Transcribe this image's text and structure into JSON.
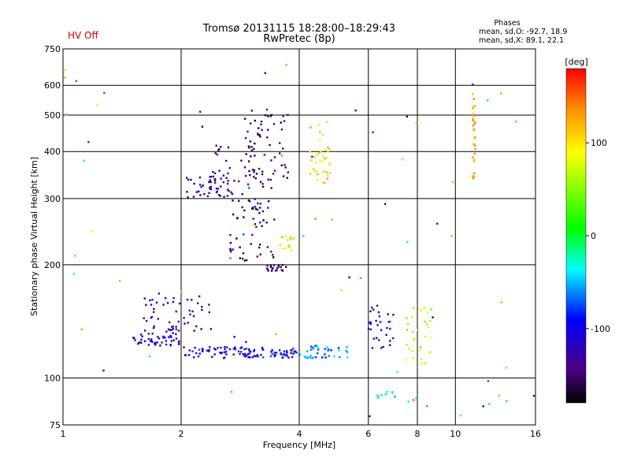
{
  "hv_status": "HV Off",
  "title_line1": "Tromsø 20131115 18:28:00–18:29:43",
  "title_line2": "RwPretec (8p)",
  "phases_legend": {
    "heading": "Phases",
    "line_o": "mean, sd,O: -92.7, 18.9",
    "line_x": "mean, sd,X: 89.1, 22.1"
  },
  "colorbar": {
    "unit_label": "[deg]",
    "ticks": [
      "100",
      "0",
      "-100"
    ],
    "tick_values": [
      100,
      0,
      -100
    ],
    "range": [
      -180,
      180
    ],
    "colors": [
      "#000000",
      "#4b0082",
      "#0000ff",
      "#00ffff",
      "#00ff00",
      "#ffff00",
      "#ff8c00",
      "#ff0000"
    ]
  },
  "chart_data": {
    "type": "scatter",
    "xlabel": "Frequency [MHz]",
    "ylabel": "Stationary phase Virtual Height [km]",
    "xscale": "log",
    "yscale": "log",
    "xlim": [
      1,
      16
    ],
    "ylim": [
      75,
      750
    ],
    "xticks": [
      1,
      2,
      4,
      6,
      8,
      10,
      16
    ],
    "xtick_labels": [
      "1",
      "2",
      "4",
      "6",
      "8",
      "10",
      "16"
    ],
    "yticks": [
      75,
      100,
      200,
      300,
      400,
      500,
      600,
      750
    ],
    "ytick_labels": [
      "75",
      "100",
      "200",
      "300",
      "400",
      "500",
      "600",
      "750"
    ],
    "grid": true,
    "point_groups": [
      {
        "x_range": [
          1.45,
          2.0
        ],
        "h_range": [
          122,
          132
        ],
        "phase": -100,
        "count": 45
      },
      {
        "x_range": [
          1.6,
          2.4
        ],
        "h_range": [
          132,
          168
        ],
        "phase": -110,
        "count": 55
      },
      {
        "x_range": [
          2.0,
          4.0
        ],
        "h_range": [
          113,
          121
        ],
        "phase": -90,
        "count": 110
      },
      {
        "x_range": [
          4.0,
          5.3
        ],
        "h_range": [
          113,
          122
        ],
        "phase": -50,
        "count": 40
      },
      {
        "x_range": [
          2.05,
          2.7
        ],
        "h_range": [
          300,
          345
        ],
        "phase": -120,
        "count": 45
      },
      {
        "x_range": [
          2.4,
          3.1
        ],
        "h_range": [
          280,
          420
        ],
        "phase": -130,
        "count": 30
      },
      {
        "x_range": [
          2.9,
          3.75
        ],
        "h_range": [
          320,
          520
        ],
        "phase": -140,
        "count": 70
      },
      {
        "x_range": [
          2.65,
          3.5
        ],
        "h_range": [
          205,
          300
        ],
        "phase": -145,
        "count": 50
      },
      {
        "x_range": [
          3.3,
          3.75
        ],
        "h_range": [
          192,
          200
        ],
        "phase": -140,
        "count": 20
      },
      {
        "x_range": [
          3.55,
          3.9
        ],
        "h_range": [
          215,
          240
        ],
        "phase": 75,
        "count": 15
      },
      {
        "x_range": [
          4.25,
          4.8
        ],
        "h_range": [
          330,
          480
        ],
        "phase": 95,
        "count": 40
      },
      {
        "x_range": [
          6.0,
          7.0
        ],
        "h_range": [
          118,
          158
        ],
        "phase": -95,
        "count": 30
      },
      {
        "x_range": [
          7.4,
          8.7
        ],
        "h_range": [
          108,
          160
        ],
        "phase": 70,
        "count": 30
      },
      {
        "x_range": [
          6.3,
          7.1
        ],
        "h_range": [
          88,
          92
        ],
        "phase": -10,
        "count": 10
      },
      {
        "x_range": [
          11.05,
          11.25
        ],
        "h_range": [
          330,
          570
        ],
        "phase": 110,
        "count": 35
      },
      {
        "x_range": [
          1.0,
          16.0
        ],
        "h_range": [
          78,
          700
        ],
        "phase": 0,
        "count": 70
      }
    ]
  }
}
